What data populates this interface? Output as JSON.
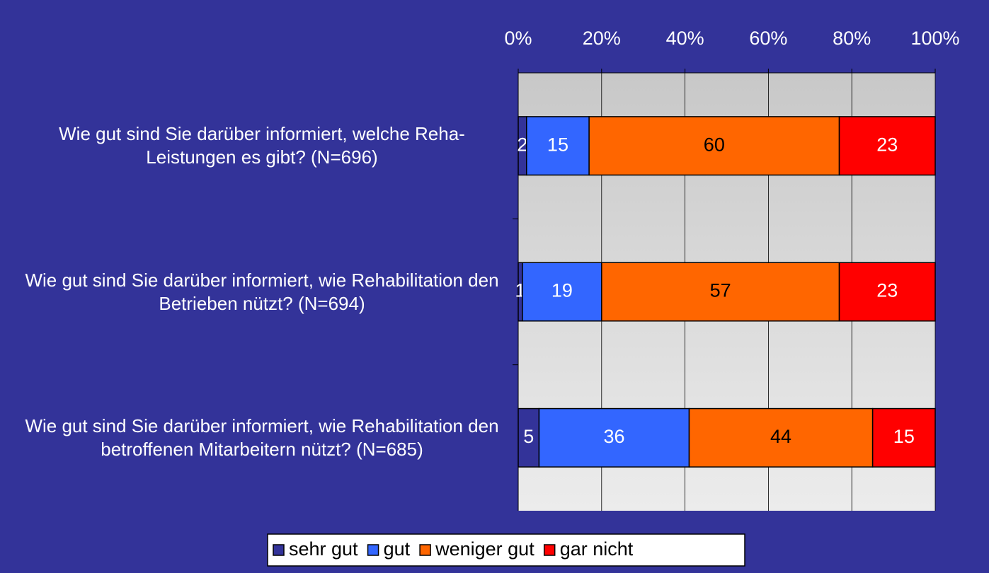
{
  "chart_data": {
    "type": "stacked_barh",
    "categories": [
      "Wie gut sind Sie darüber informiert, welche Reha-Leistungen es gibt? (N=696)",
      "Wie gut sind Sie darüber informiert, wie Rehabilitation den Betrieben nützt? (N=694)",
      "Wie gut sind Sie darüber informiert, wie Rehabilitation den betroffenen Mitarbeitern nützt? (N=685)"
    ],
    "series": [
      {
        "name": "sehr gut",
        "color": "#333399",
        "label_color": "#ffffff",
        "values": [
          2,
          1,
          5
        ]
      },
      {
        "name": "gut",
        "color": "#3366ff",
        "label_color": "#ffffff",
        "values": [
          15,
          19,
          36
        ]
      },
      {
        "name": "weniger gut",
        "color": "#ff6600",
        "label_color": "#000000",
        "values": [
          60,
          57,
          44
        ]
      },
      {
        "name": "gar nicht",
        "color": "#ff0000",
        "label_color": "#ffffff",
        "values": [
          23,
          23,
          15
        ]
      }
    ],
    "xlim": [
      0,
      100
    ],
    "xticks": [
      {
        "value": 0,
        "label": "0%"
      },
      {
        "value": 20,
        "label": "20%"
      },
      {
        "value": 40,
        "label": "40%"
      },
      {
        "value": 60,
        "label": "60%"
      },
      {
        "value": 80,
        "label": "80%"
      },
      {
        "value": 100,
        "label": "100%"
      }
    ],
    "grid": true,
    "legend": "bottom"
  }
}
